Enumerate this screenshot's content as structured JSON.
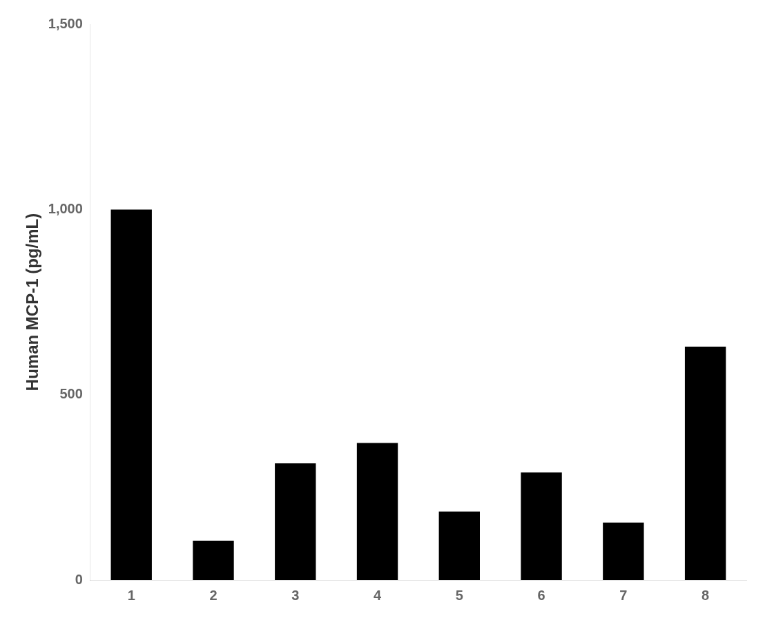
{
  "chart_data": {
    "type": "bar",
    "categories": [
      "1",
      "2",
      "3",
      "4",
      "5",
      "6",
      "7",
      "8"
    ],
    "values": [
      999.8,
      106.1,
      315.0,
      370.0,
      185.0,
      290.0,
      155.0,
      630.0
    ],
    "color": "#000000",
    "ylabel": "Human MCP-1 (pg/mL)",
    "ylim": [
      0,
      1500
    ],
    "yticks": [
      0,
      500,
      {
        "value": 1000,
        "label": "1,000"
      },
      {
        "value": 1500,
        "label": "1,500"
      }
    ],
    "grid": false
  }
}
